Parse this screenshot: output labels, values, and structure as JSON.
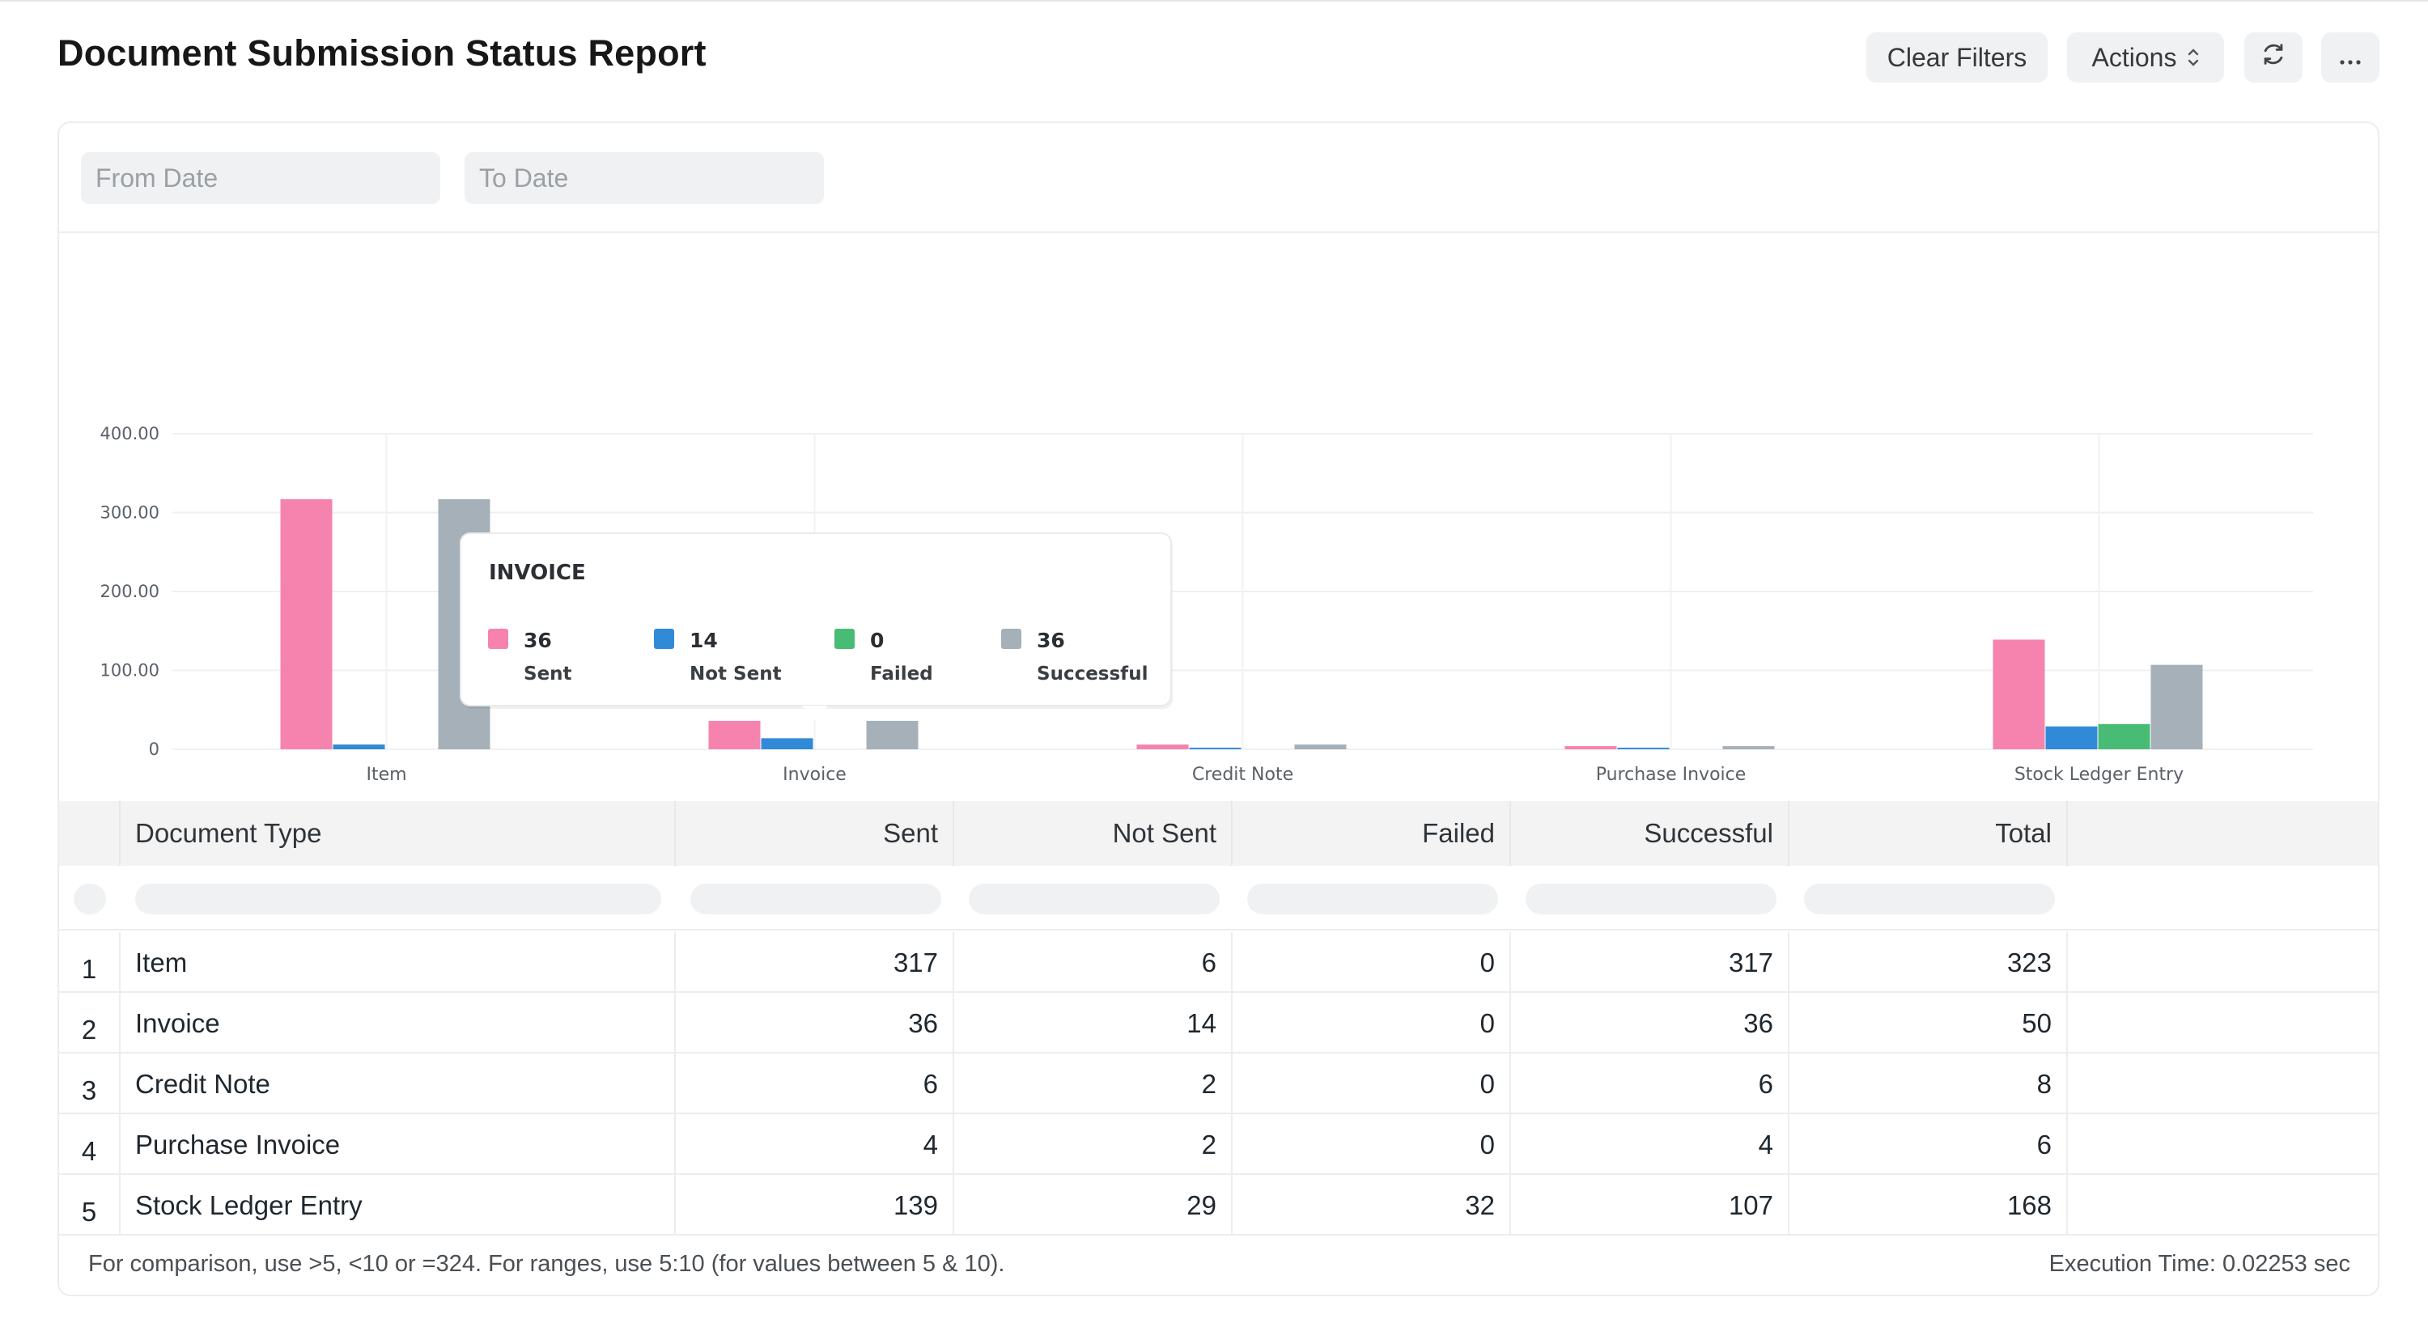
{
  "header": {
    "title": "Document Submission Status Report",
    "clear_filters_label": "Clear Filters",
    "actions_label": "Actions",
    "refresh_icon": "refresh-icon",
    "more_icon": "ellipsis-icon"
  },
  "filters": {
    "from_date_placeholder": "From Date",
    "to_date_placeholder": "To Date"
  },
  "chart_data": {
    "type": "bar",
    "categories": [
      "Item",
      "Invoice",
      "Credit Note",
      "Purchase Invoice",
      "Stock Ledger Entry"
    ],
    "series": [
      {
        "name": "Sent",
        "color": "#f683ae",
        "values": [
          317,
          36,
          6,
          4,
          139
        ]
      },
      {
        "name": "Not Sent",
        "color": "#318ad8",
        "values": [
          6,
          14,
          2,
          2,
          29
        ]
      },
      {
        "name": "Failed",
        "color": "#48bb74",
        "values": [
          0,
          0,
          0,
          0,
          32
        ]
      },
      {
        "name": "Successful",
        "color": "#a5b0b8",
        "values": [
          317,
          36,
          6,
          4,
          107
        ]
      }
    ],
    "yticks": [
      "0",
      "100.00",
      "200.00",
      "300.00",
      "400.00"
    ],
    "ylim": [
      0,
      400
    ],
    "grid": true,
    "legend": "bottom-left",
    "tooltip": {
      "title": "INVOICE",
      "category_index": 1,
      "entries": [
        {
          "value": "36",
          "label": "Sent",
          "color": "#f683ae"
        },
        {
          "value": "14",
          "label": "Not Sent",
          "color": "#318ad8"
        },
        {
          "value": "0",
          "label": "Failed",
          "color": "#48bb74"
        },
        {
          "value": "36",
          "label": "Successful",
          "color": "#a5b0b8"
        }
      ]
    }
  },
  "table": {
    "columns": [
      "Document Type",
      "Sent",
      "Not Sent",
      "Failed",
      "Successful",
      "Total"
    ],
    "rows": [
      {
        "num": "1",
        "type": "Item",
        "sent": "317",
        "not_sent": "6",
        "failed": "0",
        "successful": "317",
        "total": "323"
      },
      {
        "num": "2",
        "type": "Invoice",
        "sent": "36",
        "not_sent": "14",
        "failed": "0",
        "successful": "36",
        "total": "50"
      },
      {
        "num": "3",
        "type": "Credit Note",
        "sent": "6",
        "not_sent": "2",
        "failed": "0",
        "successful": "6",
        "total": "8"
      },
      {
        "num": "4",
        "type": "Purchase Invoice",
        "sent": "4",
        "not_sent": "2",
        "failed": "0",
        "successful": "4",
        "total": "6"
      },
      {
        "num": "5",
        "type": "Stock Ledger Entry",
        "sent": "139",
        "not_sent": "29",
        "failed": "32",
        "successful": "107",
        "total": "168"
      }
    ]
  },
  "footer": {
    "hint": "For comparison, use >5, <10 or =324. For ranges, use 5:10 (for values between 5 & 10).",
    "execution_time": "Execution Time: 0.02253 sec"
  }
}
